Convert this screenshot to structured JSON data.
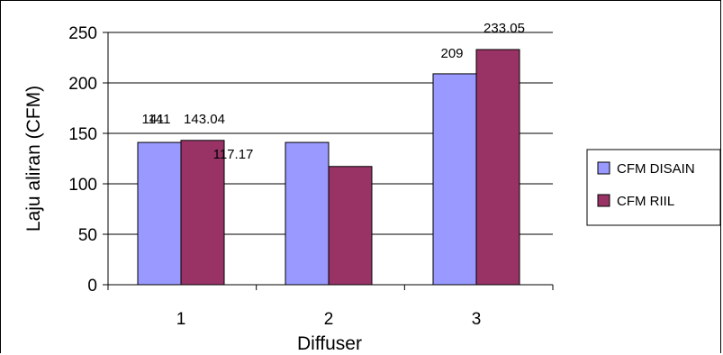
{
  "chart_data": {
    "type": "bar",
    "categories": [
      "1",
      "2",
      "3"
    ],
    "series": [
      {
        "name": "CFM DISAIN",
        "values": [
          141,
          141,
          209
        ],
        "labels": [
          "141",
          "141",
          "209"
        ],
        "color": "#9999ff"
      },
      {
        "name": "CFM RIIL",
        "values": [
          143.04,
          117.17,
          233.05
        ],
        "labels": [
          "143.04",
          "117.17",
          "233.05"
        ],
        "color": "#993366"
      }
    ],
    "title": "",
    "xlabel": "Diffuser",
    "ylabel": "Laju aliran (CFM)",
    "ylim": [
      0,
      250
    ],
    "yticks": [
      0,
      50,
      100,
      150,
      200,
      250
    ],
    "grid": true,
    "legend_position": "right"
  }
}
